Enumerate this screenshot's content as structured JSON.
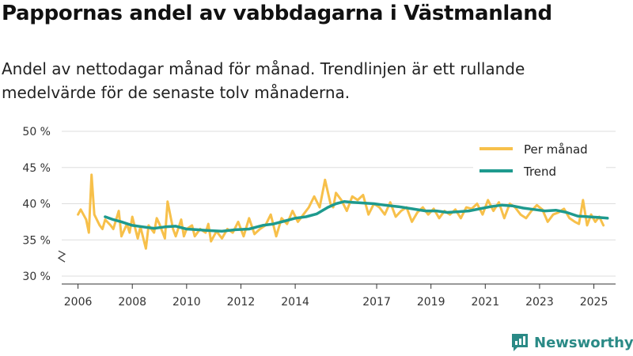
{
  "title": "Pappornas andel av vabbdagarna i Västmanland",
  "subtitle": "Andel av nettodagar månad för månad. Trendlinjen är ett rullande medelvärde för de senaste tolv månaderna.",
  "brand": "Newsworthy",
  "colors": {
    "monthly": "#f7c04a",
    "trend": "#1e9a8e",
    "grid": "#dddddd",
    "axis": "#333333",
    "brand": "#2a8a86"
  },
  "chart_data": {
    "type": "line",
    "ylim": [
      30,
      50
    ],
    "y_ticks": [
      30,
      35,
      40,
      45,
      50
    ],
    "y_tick_labels": [
      "30 %",
      "35 %",
      "40 %",
      "45 %",
      "50 %"
    ],
    "x_ticks": [
      2006,
      2008,
      2010,
      2012,
      2014,
      2017,
      2019,
      2021,
      2023,
      2025
    ],
    "x_tick_labels": [
      "2006",
      "2008",
      "2010",
      "2012",
      "2014",
      "2017",
      "2019",
      "2021",
      "2023",
      "2025"
    ],
    "legend": {
      "position": "top-right",
      "entries": [
        "Per månad",
        "Trend"
      ]
    },
    "series": [
      {
        "name": "Per månad",
        "x": [
          2006.0,
          2006.1,
          2006.3,
          2006.4,
          2006.5,
          2006.6,
          2006.8,
          2006.9,
          2007.0,
          2007.2,
          2007.3,
          2007.5,
          2007.6,
          2007.8,
          2007.9,
          2008.0,
          2008.2,
          2008.3,
          2008.5,
          2008.6,
          2008.8,
          2008.9,
          2009.0,
          2009.2,
          2009.3,
          2009.5,
          2009.6,
          2009.8,
          2009.9,
          2010.0,
          2010.2,
          2010.3,
          2010.5,
          2010.7,
          2010.8,
          2010.9,
          2011.1,
          2011.3,
          2011.5,
          2011.7,
          2011.9,
          2012.1,
          2012.3,
          2012.5,
          2012.7,
          2012.9,
          2013.1,
          2013.3,
          2013.5,
          2013.7,
          2013.9,
          2014.1,
          2014.3,
          2014.5,
          2014.7,
          2014.9,
          2015.1,
          2015.3,
          2015.4,
          2015.5,
          2015.7,
          2015.9,
          2016.1,
          2016.3,
          2016.5,
          2016.7,
          2016.9,
          2017.1,
          2017.3,
          2017.5,
          2017.7,
          2017.9,
          2018.1,
          2018.3,
          2018.5,
          2018.7,
          2018.9,
          2019.1,
          2019.3,
          2019.5,
          2019.7,
          2019.9,
          2020.1,
          2020.3,
          2020.5,
          2020.7,
          2020.9,
          2021.1,
          2021.3,
          2021.5,
          2021.7,
          2021.9,
          2022.1,
          2022.3,
          2022.5,
          2022.7,
          2022.9,
          2023.1,
          2023.3,
          2023.5,
          2023.7,
          2023.9,
          2024.1,
          2024.3,
          2024.45,
          2024.6,
          2024.75,
          2024.9,
          2025.05,
          2025.2,
          2025.35
        ],
        "values": [
          38.5,
          39.2,
          37.8,
          36.0,
          44.0,
          38.5,
          37.0,
          36.5,
          37.8,
          37.0,
          36.5,
          39.0,
          35.5,
          37.2,
          36.0,
          38.2,
          35.2,
          36.8,
          33.8,
          37.0,
          36.0,
          38.0,
          37.2,
          35.2,
          40.3,
          36.5,
          35.5,
          37.8,
          35.5,
          36.5,
          37.0,
          35.5,
          36.5,
          36.0,
          37.2,
          34.8,
          36.2,
          35.2,
          36.5,
          36.0,
          37.5,
          35.5,
          38.0,
          35.8,
          36.5,
          37.0,
          38.5,
          35.5,
          38.0,
          37.2,
          39.0,
          37.5,
          38.5,
          39.5,
          41.0,
          39.5,
          43.3,
          40.0,
          39.5,
          41.5,
          40.5,
          39.0,
          41.0,
          40.5,
          41.2,
          38.5,
          40.0,
          39.5,
          38.5,
          40.2,
          38.2,
          39.0,
          39.5,
          37.5,
          38.8,
          39.5,
          38.5,
          39.3,
          38.0,
          39.0,
          38.5,
          39.2,
          38.0,
          39.5,
          39.3,
          40.0,
          38.5,
          40.5,
          39.0,
          40.2,
          38.0,
          40.0,
          39.5,
          38.5,
          38.0,
          39.0,
          39.8,
          39.2,
          37.5,
          38.5,
          38.8,
          39.3,
          38.0,
          37.5,
          37.2,
          40.5,
          37.0,
          38.5,
          37.5,
          38.2,
          37.0
        ],
        "color": "#f7c04a"
      },
      {
        "name": "Trend",
        "x": [
          2007.0,
          2007.3,
          2007.6,
          2008.0,
          2008.4,
          2008.8,
          2009.2,
          2009.6,
          2010.0,
          2010.4,
          2010.8,
          2011.3,
          2011.8,
          2012.3,
          2012.8,
          2013.2,
          2013.6,
          2014.0,
          2014.4,
          2014.8,
          2015.2,
          2015.5,
          2015.8,
          2016.1,
          2016.5,
          2016.9,
          2017.3,
          2017.8,
          2018.3,
          2018.8,
          2019.2,
          2019.6,
          2020.0,
          2020.4,
          2020.8,
          2021.2,
          2021.6,
          2022.0,
          2022.4,
          2022.8,
          2023.2,
          2023.6,
          2024.0,
          2024.4,
          2024.8,
          2025.2,
          2025.5
        ],
        "values": [
          38.2,
          37.8,
          37.5,
          37.0,
          36.8,
          36.6,
          36.8,
          36.9,
          36.5,
          36.4,
          36.3,
          36.2,
          36.4,
          36.5,
          37.0,
          37.2,
          37.6,
          38.0,
          38.2,
          38.6,
          39.5,
          40.0,
          40.3,
          40.2,
          40.1,
          40.0,
          39.8,
          39.6,
          39.3,
          39.0,
          39.0,
          38.8,
          38.9,
          39.0,
          39.3,
          39.6,
          39.8,
          39.7,
          39.4,
          39.2,
          39.0,
          39.1,
          38.8,
          38.3,
          38.2,
          38.1,
          38.0
        ],
        "color": "#1e9a8e"
      }
    ]
  }
}
